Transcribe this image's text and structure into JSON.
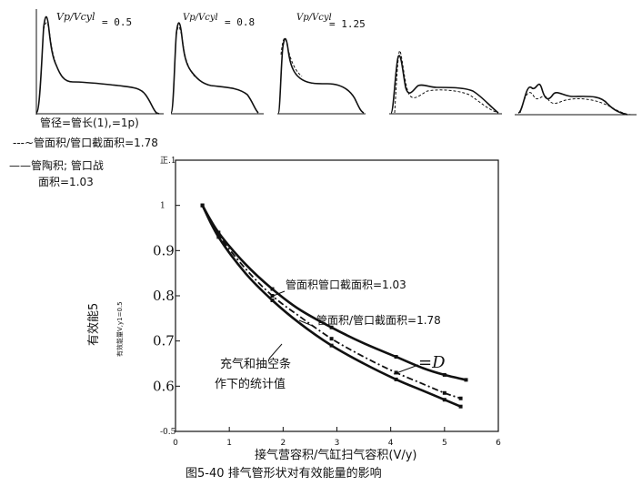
{
  "caption": "图5-40 排气管形状对有效能量的影响",
  "top_panels": [
    {
      "ratio_fraction": "Vp/Vcyl",
      "ratio_value": "= 0.5"
    },
    {
      "ratio_fraction": "Vp/Vcyl",
      "ratio_value": "= 0.8"
    },
    {
      "ratio_fraction": "Vp/Vcyl",
      "ratio_value": "= 1.25"
    }
  ],
  "legend": {
    "line1": "管径=管长(1),=1p)",
    "line2": "---~管面积/管口截面积=1.78",
    "line3": "——管陶积; 管口战",
    "line4": "面积=1.03"
  },
  "chart_data": {
    "type": "line",
    "xlabel": "接气营容积/气缸扫气容积(V/y)",
    "ylabel": "有效能5",
    "ylabel_small": "有效能量V,y1=0.5",
    "xlim": [
      0,
      6
    ],
    "ylim": [
      0.5,
      1.1
    ],
    "x_ticks": [
      "0",
      "1",
      "2",
      "3",
      "4",
      "5",
      "6"
    ],
    "y_tick_labels": [
      {
        "value": 1.1,
        "label": "正.1"
      },
      {
        "value": 1.0,
        "label": "1"
      },
      {
        "value": 0.9,
        "label": "0.9"
      },
      {
        "value": 0.8,
        "label": "0.8"
      },
      {
        "value": 0.7,
        "label": "0.7"
      },
      {
        "value": 0.6,
        "label": "0.6"
      },
      {
        "value": 0.5,
        "label": "-0.5"
      }
    ],
    "series": [
      {
        "name": "管面积管口截面积=1.03",
        "style": "solid-upper",
        "x": [
          0.5,
          0.8,
          1.3,
          1.8,
          2.3,
          2.9,
          3.5,
          4.1,
          4.6,
          5.0,
          5.4
        ],
        "y": [
          1.0,
          0.94,
          0.87,
          0.815,
          0.77,
          0.73,
          0.695,
          0.665,
          0.64,
          0.625,
          0.614
        ]
      },
      {
        "name": "管面积/管口截面积=1.78",
        "style": "dash-dot",
        "x": [
          0.5,
          0.8,
          1.3,
          1.8,
          2.3,
          2.9,
          3.5,
          4.1,
          4.6,
          5.0,
          5.3
        ],
        "y": [
          1.0,
          0.935,
          0.86,
          0.8,
          0.755,
          0.705,
          0.665,
          0.63,
          0.605,
          0.585,
          0.573
        ]
      },
      {
        "name": "充气和抽空条作下的统计值",
        "style": "solid-lower",
        "x": [
          0.5,
          0.8,
          1.3,
          1.8,
          2.3,
          2.9,
          3.5,
          4.1,
          4.6,
          5.0,
          5.3
        ],
        "y": [
          1.0,
          0.93,
          0.85,
          0.79,
          0.74,
          0.69,
          0.65,
          0.615,
          0.59,
          0.57,
          0.555
        ]
      }
    ],
    "annotations": {
      "series1_label": "管面积管口截面积=1.03",
      "series2_label": "管面积/管口截面积=1.78",
      "series3_label_line1": "充气和抽空条",
      "series3_label_line2": "作下的统计值",
      "d_label": "=D"
    }
  }
}
